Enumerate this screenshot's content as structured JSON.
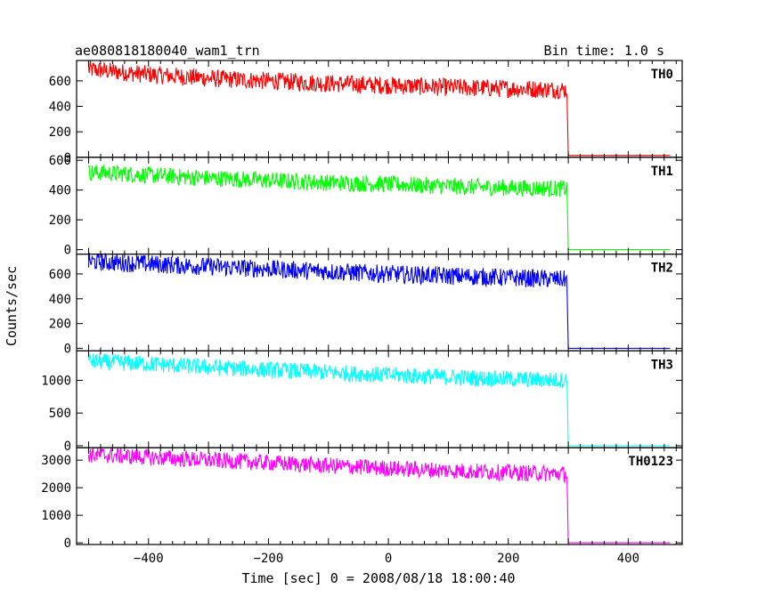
{
  "chart_data": {
    "type": "line",
    "title": "ae080818180040_wam1_trn",
    "bin_time_label": "Bin time: 1.0 s",
    "xlabel": "Time [sec] 0 = 2008/08/18 18:00:40",
    "ylabel": "Counts/sec",
    "xlim": [
      -520,
      490
    ],
    "x_ticks": [
      -400,
      -200,
      0,
      200,
      400
    ],
    "x_tick_labels": [
      "−400",
      "−200",
      "0",
      "200",
      "400"
    ],
    "panels": [
      {
        "name": "TH0",
        "color": "#ff0000",
        "ylim": [
          0,
          760
        ],
        "y_ticks": [
          0,
          200,
          400,
          600
        ],
        "y_tick_labels": [
          "0",
          "200",
          "400",
          "600"
        ],
        "series": {
          "x": [
            -500,
            -400,
            -300,
            -200,
            -100,
            0,
            100,
            200,
            298,
            300,
            470
          ],
          "values": [
            690,
            650,
            620,
            600,
            580,
            565,
            550,
            540,
            530,
            15,
            15
          ]
        }
      },
      {
        "name": "TH1",
        "color": "#00ff00",
        "ylim": [
          -30,
          620
        ],
        "y_ticks": [
          0,
          200,
          400,
          600
        ],
        "y_tick_labels": [
          "0",
          "200",
          "400",
          "600"
        ],
        "series": {
          "x": [
            -500,
            -400,
            -300,
            -200,
            -100,
            0,
            100,
            200,
            298,
            300,
            470
          ],
          "values": [
            520,
            500,
            480,
            465,
            450,
            440,
            425,
            415,
            410,
            0,
            0
          ]
        }
      },
      {
        "name": "TH2",
        "color": "#0000ff",
        "ylim": [
          -20,
          760
        ],
        "y_ticks": [
          0,
          200,
          400,
          600
        ],
        "y_tick_labels": [
          "0",
          "200",
          "400",
          "600"
        ],
        "series": {
          "x": [
            -500,
            -400,
            -300,
            -200,
            -100,
            0,
            100,
            200,
            298,
            300,
            470
          ],
          "values": [
            700,
            680,
            660,
            640,
            620,
            600,
            585,
            570,
            555,
            0,
            0
          ]
        }
      },
      {
        "name": "TH3",
        "color": "#00ffff",
        "ylim": [
          -30,
          1450
        ],
        "y_ticks": [
          0,
          500,
          1000
        ],
        "y_tick_labels": [
          "0",
          "500",
          "1000"
        ],
        "series": {
          "x": [
            -500,
            -400,
            -300,
            -200,
            -100,
            0,
            100,
            200,
            298,
            300,
            470
          ],
          "values": [
            1290,
            1250,
            1200,
            1160,
            1120,
            1080,
            1050,
            1020,
            1000,
            0,
            0
          ]
        }
      },
      {
        "name": "TH0123",
        "color": "#ff00ff",
        "ylim": [
          -60,
          3450
        ],
        "y_ticks": [
          0,
          1000,
          2000,
          3000
        ],
        "y_tick_labels": [
          "0",
          "1000",
          "2000",
          "3000"
        ],
        "series": {
          "x": [
            -500,
            -400,
            -300,
            -200,
            -100,
            0,
            100,
            200,
            298,
            300,
            470
          ],
          "values": [
            3200,
            3100,
            3000,
            2900,
            2800,
            2700,
            2620,
            2550,
            2500,
            0,
            0
          ]
        }
      }
    ]
  }
}
